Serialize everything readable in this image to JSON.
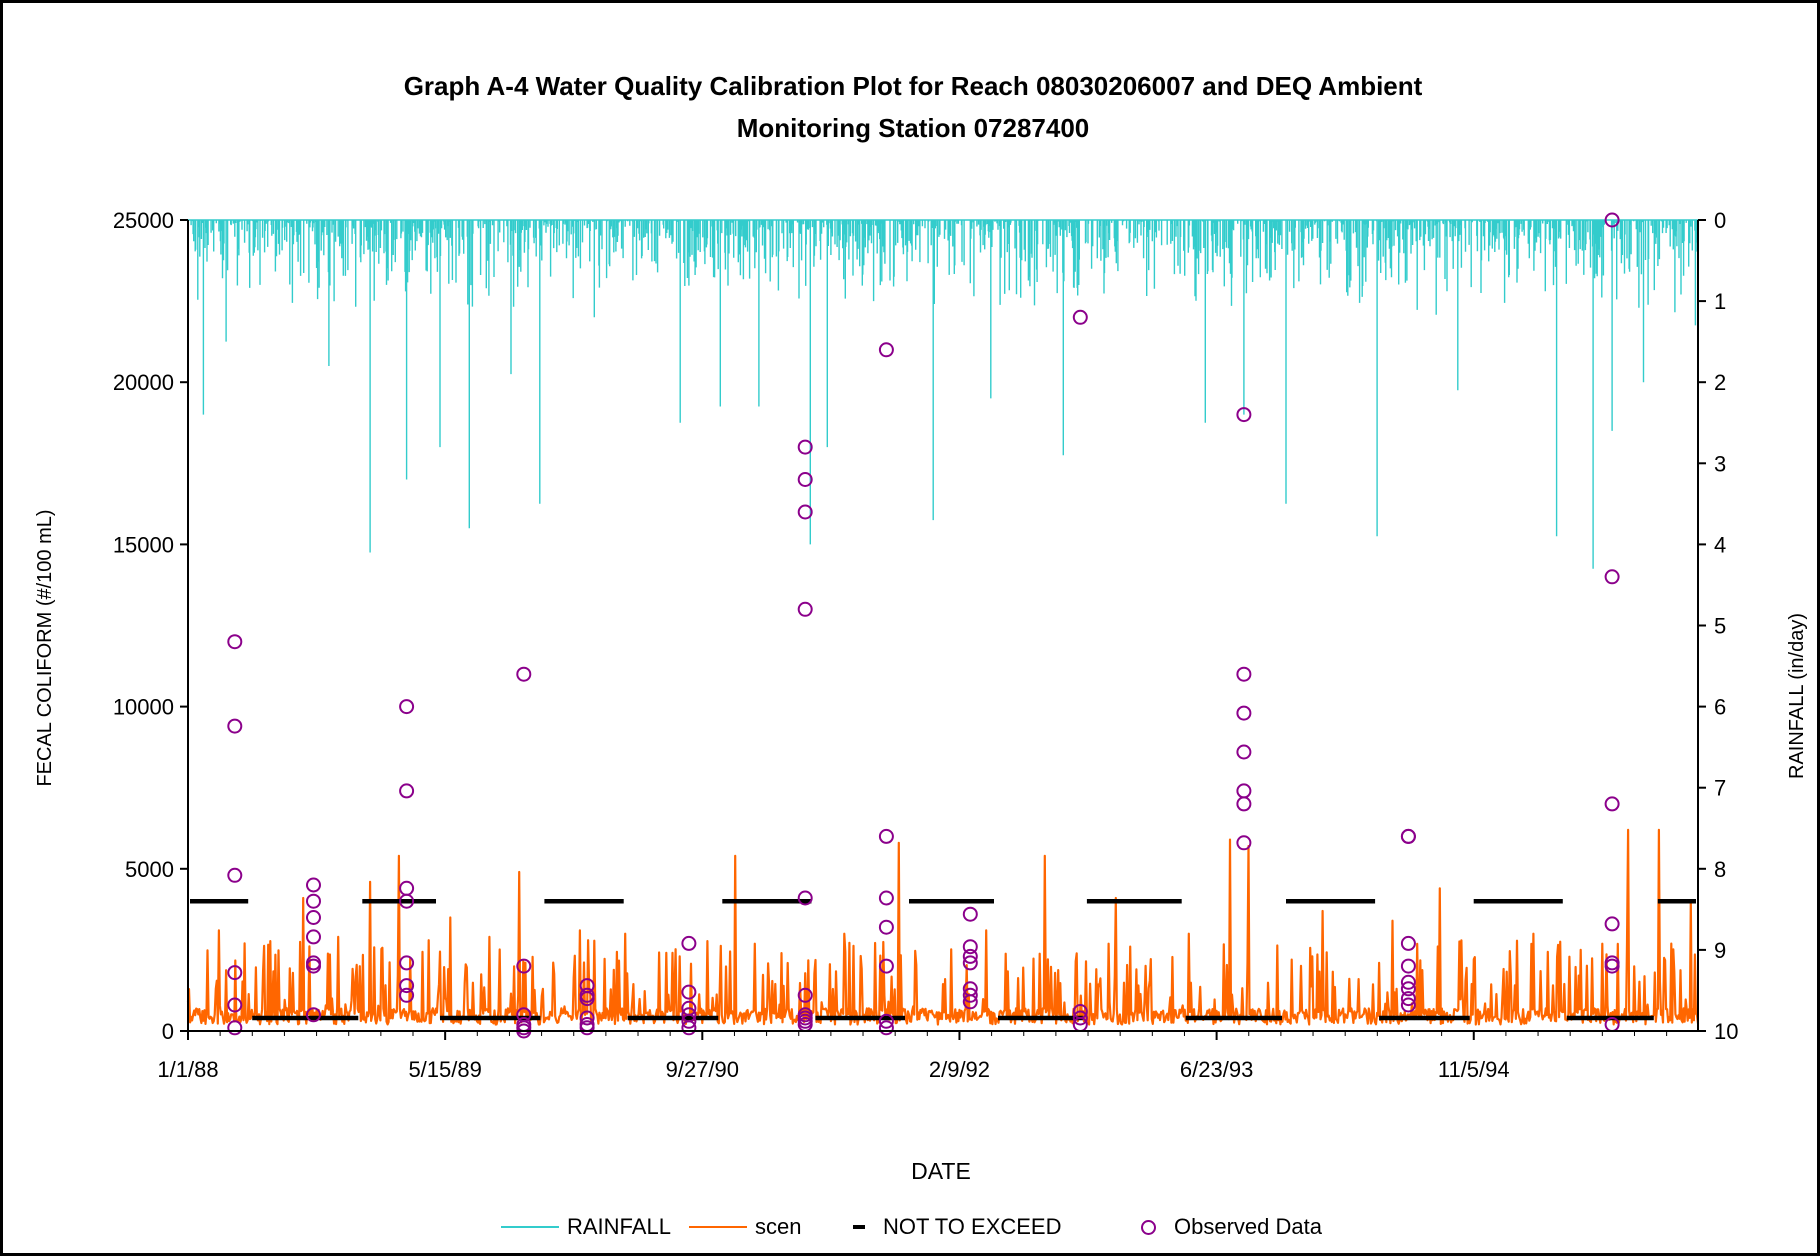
{
  "colors": {
    "rainfall": "#33CCCC",
    "scen": "#FF6600",
    "not_to_exceed": "#000000",
    "observed": "#8B008B"
  },
  "chart_data": {
    "type": "line",
    "title_line1": "Graph A-4  Water Quality Calibration Plot for Reach 08030206007 and DEQ Ambient",
    "title_line2": "Monitoring Station 07287400",
    "xlabel": "DATE",
    "ylabel": "FECAL COLIFORM (#/100 mL)",
    "y2label": "RAINFALL (in/day)",
    "xlim": [
      "1988-01-01",
      "1996-01-15"
    ],
    "ylim": [
      0,
      25000
    ],
    "y2lim": [
      10,
      0
    ],
    "y2_reversed": true,
    "x_ticks": [
      "1/1/88",
      "5/15/89",
      "9/27/90",
      "2/9/92",
      "6/23/93",
      "11/5/94"
    ],
    "y_ticks": [
      0,
      5000,
      10000,
      15000,
      20000,
      25000
    ],
    "y2_ticks": [
      0,
      1,
      2,
      3,
      4,
      5,
      6,
      7,
      8,
      9,
      10
    ],
    "grid": false,
    "legend_position": "bottom",
    "legend": [
      "RAINFALL",
      "scen",
      "NOT TO EXCEED",
      "Observed Data"
    ],
    "series": [
      {
        "name": "RAINFALL",
        "axis": "right",
        "style": "line",
        "note_values": "daily rainfall, peaks as estimated",
        "peaks": [
          [
            "1988-01-31",
            2.4
          ],
          [
            "1988-03-15",
            1.5
          ],
          [
            "1988-05-20",
            0.8
          ],
          [
            "1988-10-01",
            1.8
          ],
          [
            "1988-12-20",
            4.1
          ],
          [
            "1989-03-01",
            3.2
          ],
          [
            "1989-05-05",
            2.8
          ],
          [
            "1989-07-01",
            3.8
          ],
          [
            "1989-09-20",
            1.9
          ],
          [
            "1989-11-15",
            3.5
          ],
          [
            "1990-03-01",
            1.2
          ],
          [
            "1990-08-15",
            2.5
          ],
          [
            "1990-11-01",
            2.3
          ],
          [
            "1991-01-15",
            2.3
          ],
          [
            "1991-04-25",
            4.0
          ],
          [
            "1991-05-28",
            2.8
          ],
          [
            "1991-08-26",
            1.0
          ],
          [
            "1991-12-20",
            3.7
          ],
          [
            "1992-04-10",
            2.2
          ],
          [
            "1992-08-29",
            2.9
          ],
          [
            "1993-06-01",
            2.5
          ],
          [
            "1993-08-15",
            2.4
          ],
          [
            "1993-11-05",
            3.5
          ],
          [
            "1994-05-01",
            3.9
          ],
          [
            "1994-10-05",
            2.1
          ],
          [
            "1995-04-15",
            3.9
          ],
          [
            "1995-06-25",
            4.3
          ],
          [
            "1995-08-01",
            2.6
          ],
          [
            "1995-10-01",
            2.0
          ],
          [
            "1996-01-10",
            1.3
          ]
        ]
      },
      {
        "name": "scen",
        "axis": "left",
        "style": "line",
        "note_values": "simulated fecal coliform, peaks as estimated",
        "peaks": [
          [
            "1988-03-01",
            3100
          ],
          [
            "1988-04-20",
            2700
          ],
          [
            "1988-08-12",
            4100
          ],
          [
            "1988-10-20",
            2900
          ],
          [
            "1988-12-20",
            4600
          ],
          [
            "1989-02-15",
            5400
          ],
          [
            "1989-05-26",
            3500
          ],
          [
            "1989-08-10",
            2900
          ],
          [
            "1989-10-07",
            4900
          ],
          [
            "1990-02-01",
            3100
          ],
          [
            "1990-05-01",
            3000
          ],
          [
            "1990-08-15",
            2300
          ],
          [
            "1990-12-01",
            5400
          ],
          [
            "1991-03-01",
            2400
          ],
          [
            "1991-07-01",
            3000
          ],
          [
            "1991-10-15",
            5800
          ],
          [
            "1992-04-01",
            3100
          ],
          [
            "1992-07-25",
            5400
          ],
          [
            "1992-12-10",
            4100
          ],
          [
            "1993-05-01",
            3000
          ],
          [
            "1993-07-20",
            5900
          ],
          [
            "1993-08-25",
            5700
          ],
          [
            "1994-01-15",
            3700
          ],
          [
            "1994-06-01",
            3400
          ],
          [
            "1994-09-01",
            4400
          ],
          [
            "1995-03-01",
            3000
          ],
          [
            "1995-06-01",
            2500
          ],
          [
            "1995-09-01",
            6200
          ],
          [
            "1995-11-01",
            6200
          ],
          [
            "1996-01-01",
            4000
          ]
        ]
      },
      {
        "name": "NOT TO EXCEED",
        "axis": "left",
        "style": "dash-segments",
        "segments": [
          [
            "1988-01-01",
            "1988-05-01",
            4000
          ],
          [
            "1988-05-01",
            "1988-12-01",
            400
          ],
          [
            "1988-12-01",
            "1989-05-01",
            4000
          ],
          [
            "1989-05-01",
            "1989-11-20",
            400
          ],
          [
            "1989-11-20",
            "1990-05-01",
            4000
          ],
          [
            "1990-05-01",
            "1990-11-01",
            400
          ],
          [
            "1990-11-01",
            "1991-05-01",
            4000
          ],
          [
            "1991-05-01",
            "1991-10-30",
            400
          ],
          [
            "1991-10-30",
            "1992-04-20",
            4000
          ],
          [
            "1992-04-20",
            "1992-10-10",
            400
          ],
          [
            "1992-10-10",
            "1993-04-20",
            4000
          ],
          [
            "1993-04-20",
            "1993-11-01",
            400
          ],
          [
            "1993-11-01",
            "1994-05-01",
            4000
          ],
          [
            "1994-05-01",
            "1994-11-01",
            400
          ],
          [
            "1994-11-01",
            "1995-05-01",
            4000
          ],
          [
            "1995-05-01",
            "1995-10-25",
            400
          ],
          [
            "1995-10-25",
            "1996-01-15",
            4000
          ]
        ]
      },
      {
        "name": "Observed Data",
        "axis": "left",
        "style": "scatter",
        "points": [
          [
            "1988-04-01",
            12000
          ],
          [
            "1988-04-01",
            9400
          ],
          [
            "1988-04-01",
            4800
          ],
          [
            "1988-04-01",
            1800
          ],
          [
            "1988-04-01",
            800
          ],
          [
            "1988-04-01",
            100
          ],
          [
            "1988-09-01",
            4500
          ],
          [
            "1988-09-01",
            4000
          ],
          [
            "1988-09-01",
            3500
          ],
          [
            "1988-09-01",
            2900
          ],
          [
            "1988-09-01",
            2100
          ],
          [
            "1988-09-01",
            2000
          ],
          [
            "1988-09-01",
            500
          ],
          [
            "1989-03-01",
            10000
          ],
          [
            "1989-03-01",
            7400
          ],
          [
            "1989-03-01",
            4400
          ],
          [
            "1989-03-01",
            4000
          ],
          [
            "1989-03-01",
            2100
          ],
          [
            "1989-03-01",
            1400
          ],
          [
            "1989-03-01",
            1100
          ],
          [
            "1989-10-15",
            11000
          ],
          [
            "1989-10-15",
            2000
          ],
          [
            "1989-10-15",
            500
          ],
          [
            "1989-10-15",
            200
          ],
          [
            "1989-10-15",
            100
          ],
          [
            "1989-10-15",
            0
          ],
          [
            "1990-02-15",
            1400
          ],
          [
            "1990-02-15",
            1100
          ],
          [
            "1990-02-15",
            1000
          ],
          [
            "1990-02-15",
            400
          ],
          [
            "1990-02-15",
            200
          ],
          [
            "1990-02-15",
            100
          ],
          [
            "1990-09-01",
            2700
          ],
          [
            "1990-09-01",
            1200
          ],
          [
            "1990-09-01",
            700
          ],
          [
            "1990-09-01",
            500
          ],
          [
            "1990-09-01",
            300
          ],
          [
            "1990-09-01",
            100
          ],
          [
            "1991-04-15",
            18000
          ],
          [
            "1991-04-15",
            17000
          ],
          [
            "1991-04-15",
            16000
          ],
          [
            "1991-04-15",
            13000
          ],
          [
            "1991-04-15",
            4100
          ],
          [
            "1991-04-15",
            1100
          ],
          [
            "1991-04-15",
            500
          ],
          [
            "1991-04-15",
            400
          ],
          [
            "1991-04-15",
            300
          ],
          [
            "1991-04-15",
            200
          ],
          [
            "1991-09-20",
            21000
          ],
          [
            "1991-09-20",
            6000
          ],
          [
            "1991-09-20",
            4100
          ],
          [
            "1991-09-20",
            3200
          ],
          [
            "1991-09-20",
            2000
          ],
          [
            "1991-09-20",
            300
          ],
          [
            "1991-09-20",
            100
          ],
          [
            "1992-03-01",
            3600
          ],
          [
            "1992-03-01",
            2600
          ],
          [
            "1992-03-01",
            2300
          ],
          [
            "1992-03-01",
            2100
          ],
          [
            "1992-03-01",
            1300
          ],
          [
            "1992-03-01",
            1100
          ],
          [
            "1992-03-01",
            900
          ],
          [
            "1992-10-01",
            22000
          ],
          [
            "1992-10-01",
            600
          ],
          [
            "1992-10-01",
            400
          ],
          [
            "1992-10-01",
            200
          ],
          [
            "1993-08-15",
            19000
          ],
          [
            "1993-08-15",
            11000
          ],
          [
            "1993-08-15",
            9800
          ],
          [
            "1993-08-15",
            8600
          ],
          [
            "1993-08-15",
            7400
          ],
          [
            "1993-08-15",
            7000
          ],
          [
            "1993-08-15",
            5800
          ],
          [
            "1994-07-01",
            6000
          ],
          [
            "1994-07-01",
            6000
          ],
          [
            "1994-07-01",
            2700
          ],
          [
            "1994-07-01",
            2000
          ],
          [
            "1994-07-01",
            1500
          ],
          [
            "1994-07-01",
            1300
          ],
          [
            "1994-07-01",
            1000
          ],
          [
            "1994-07-01",
            800
          ],
          [
            "1995-08-01",
            25000
          ],
          [
            "1995-08-01",
            14000
          ],
          [
            "1995-08-01",
            7000
          ],
          [
            "1995-08-01",
            3300
          ],
          [
            "1995-08-01",
            2100
          ],
          [
            "1995-08-01",
            2000
          ],
          [
            "1995-08-01",
            200
          ]
        ]
      }
    ]
  }
}
